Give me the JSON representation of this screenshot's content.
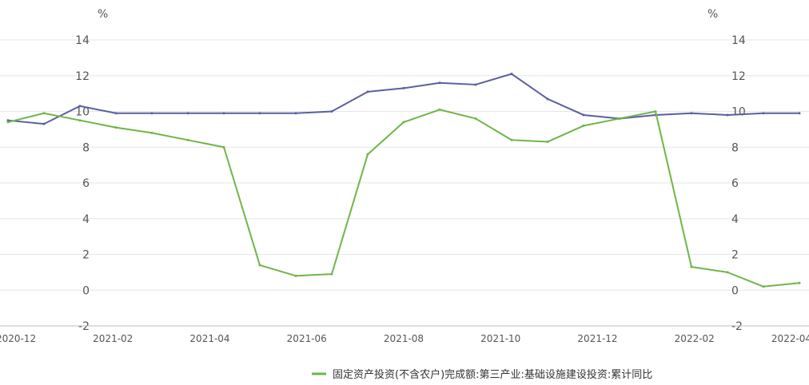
{
  "chart_data": {
    "type": "line",
    "title": "",
    "left_unit": "%",
    "right_unit": "%",
    "y_ticks": [
      14,
      12,
      10,
      8,
      6,
      4,
      2,
      0,
      -2
    ],
    "ylim": [
      -2,
      14
    ],
    "grid": true,
    "legend_position": "bottom",
    "x_tick_labels": [
      "2020-12",
      "2021-02",
      "2021-04",
      "2021-06",
      "2021-08",
      "2021-10",
      "2021-12",
      "2022-02",
      "2022-04"
    ],
    "series": [
      {
        "name": "",
        "axis": "left",
        "color": "#5B5FA0",
        "values": [
          9.5,
          9.3,
          10.3,
          9.9,
          9.9,
          9.9,
          9.9,
          9.9,
          9.9,
          10.0,
          11.1,
          11.3,
          11.6,
          11.5,
          12.1,
          10.7,
          9.8,
          9.6,
          9.8,
          9.9,
          9.8,
          9.9,
          9.9
        ]
      },
      {
        "name": "固定资产投资(不含农户)完成额:第三产业:基础设施建设投资:累计同比",
        "axis": "right",
        "color": "#6FB548",
        "values": [
          9.4,
          9.9,
          9.5,
          9.1,
          8.8,
          8.4,
          8.0,
          1.4,
          0.8,
          0.9,
          7.6,
          9.4,
          10.1,
          9.6,
          8.4,
          8.3,
          9.2,
          9.6,
          10.0,
          1.3,
          1.0,
          0.2,
          0.4
        ]
      }
    ]
  },
  "legend": {
    "label": "固定资产投资(不含农户)完成额:第三产业:基础设施建设投资:累计同比"
  }
}
